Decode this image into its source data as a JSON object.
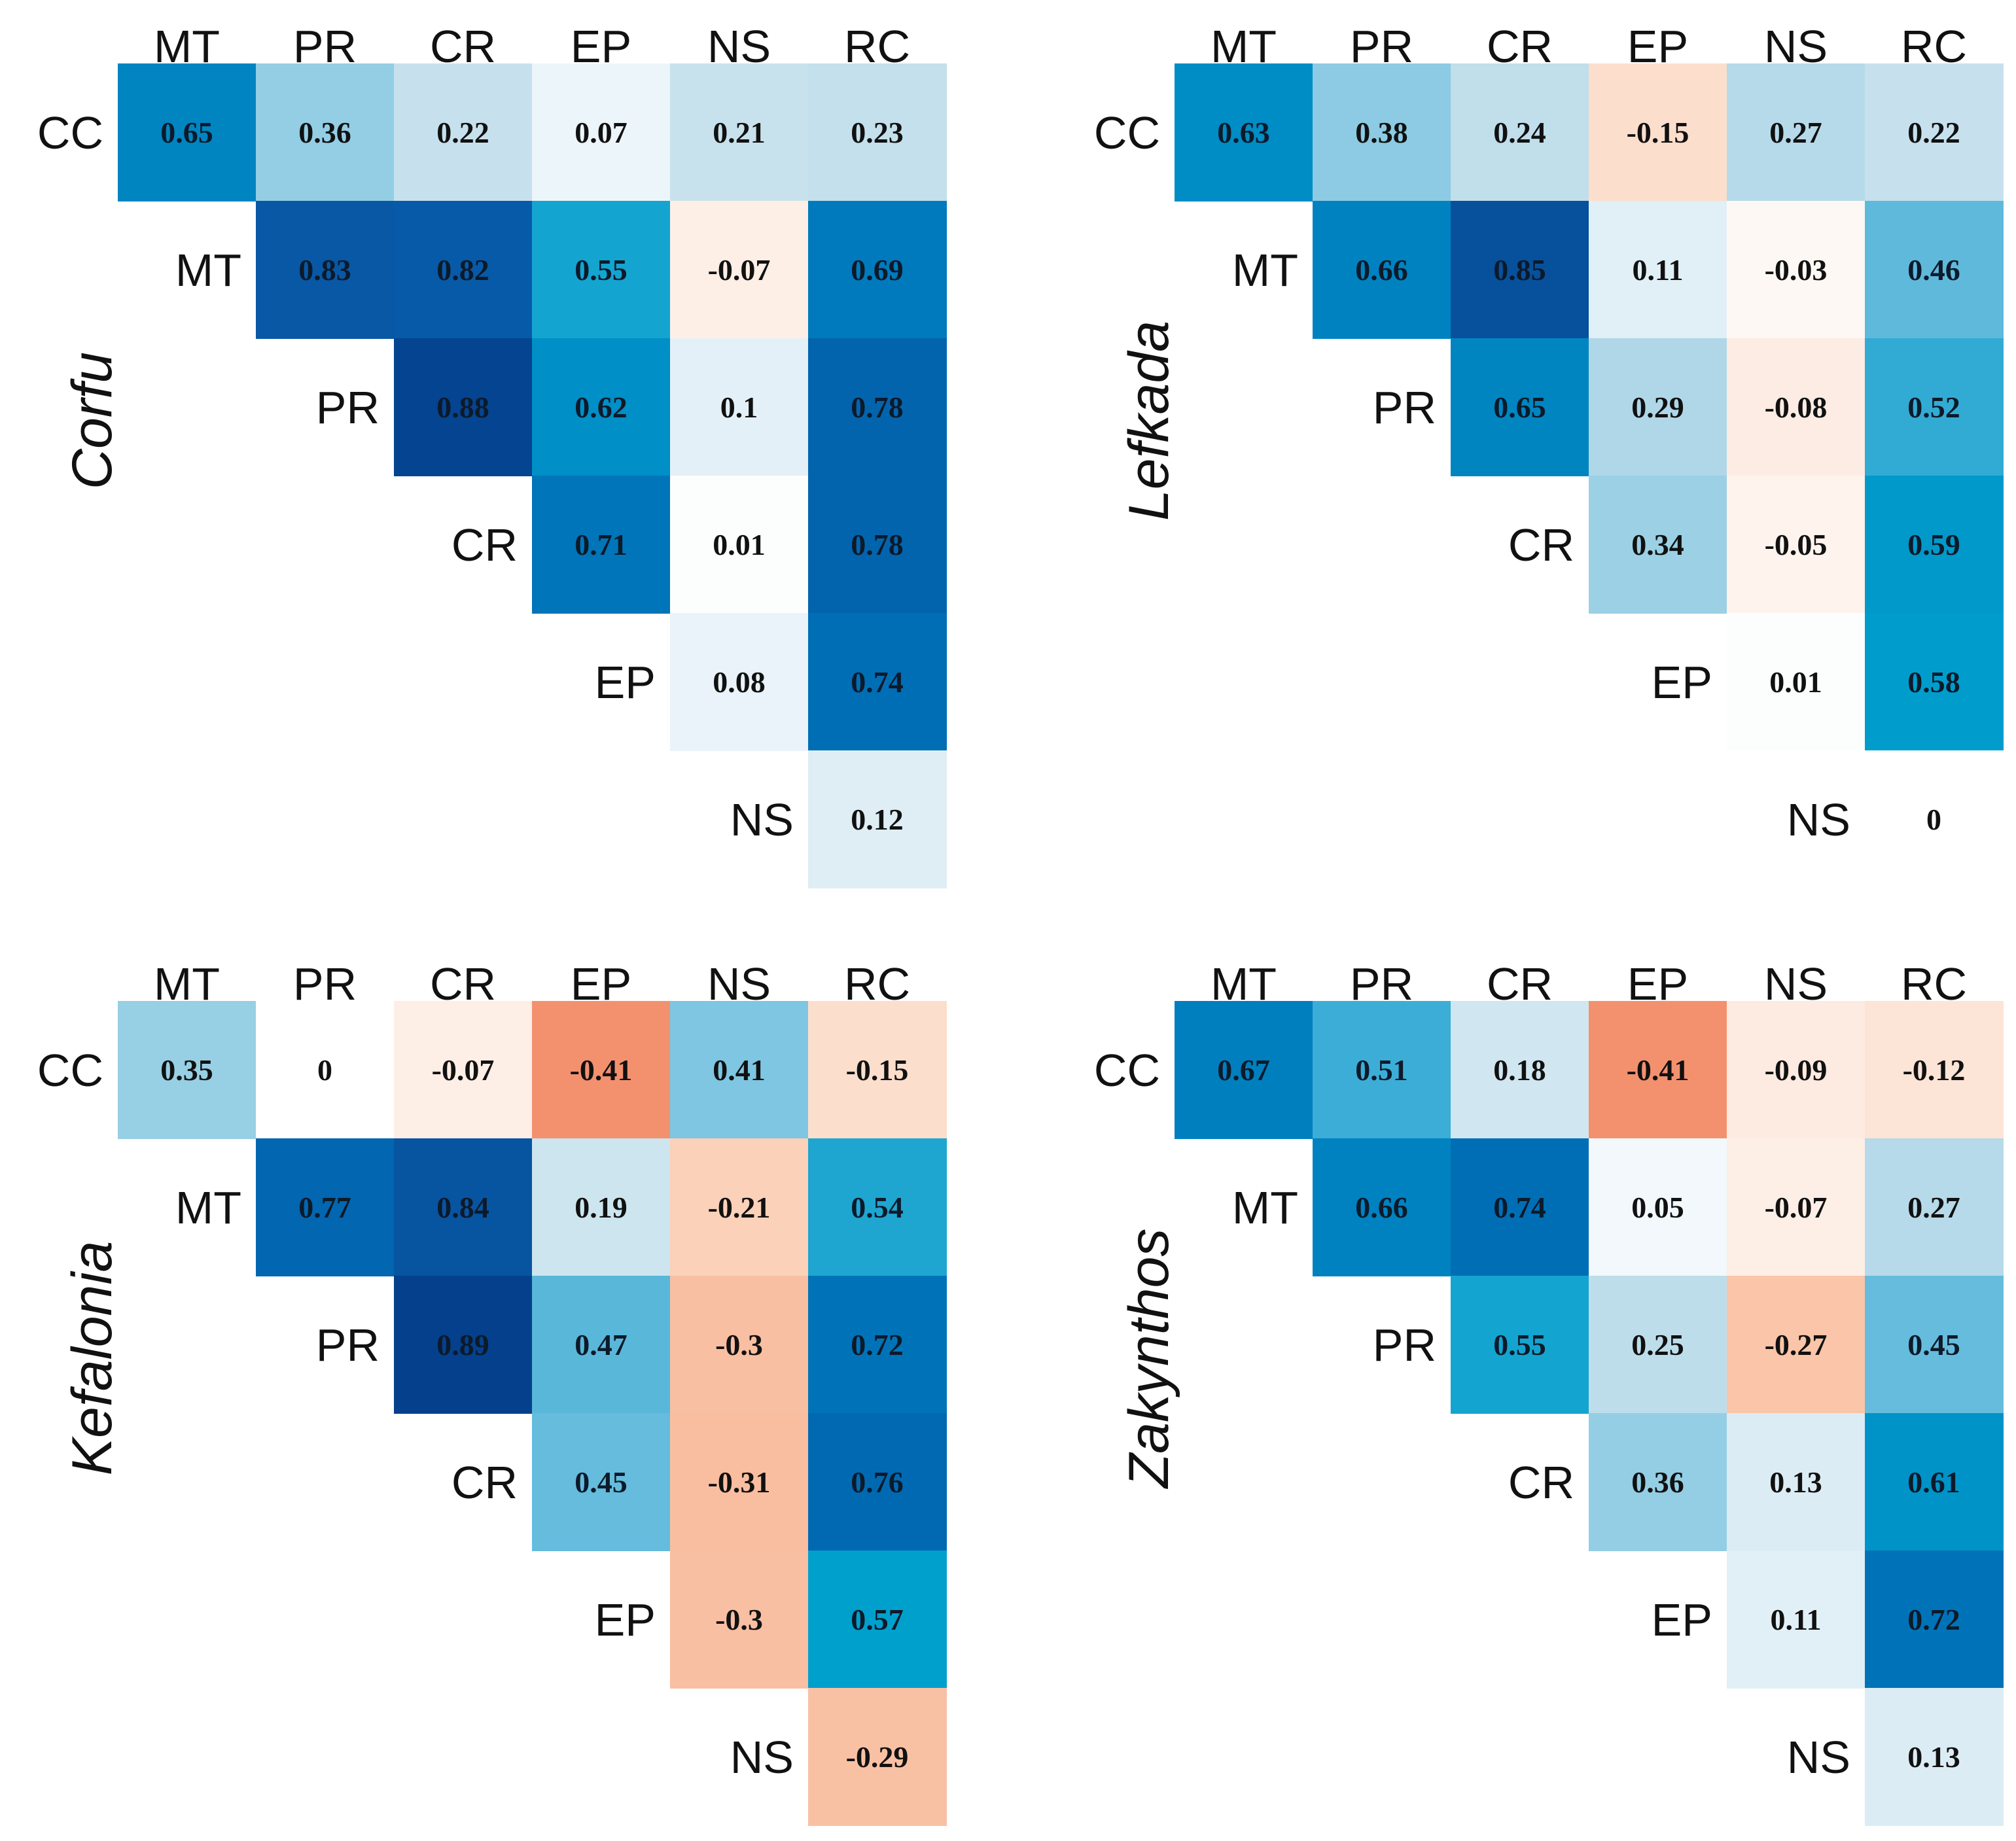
{
  "chart_data": [
    {
      "type": "heatmap",
      "title": "Corfu",
      "row_labels": [
        "CC",
        "MT",
        "PR",
        "CR",
        "EP",
        "NS"
      ],
      "col_labels": [
        "MT",
        "PR",
        "CR",
        "EP",
        "NS",
        "RC"
      ],
      "values": [
        [
          0.65,
          0.36,
          0.22,
          0.07,
          0.21,
          0.23
        ],
        [
          0.83,
          0.82,
          0.55,
          -0.07,
          0.69
        ],
        [
          0.88,
          0.62,
          0.1,
          0.78
        ],
        [
          0.71,
          0.01,
          0.78
        ],
        [
          0.08,
          0.74
        ],
        [
          0.12
        ]
      ],
      "value_labels": [
        [
          "0.65",
          "0.36",
          "0.22",
          "0.07",
          "0.21",
          "0.23"
        ],
        [
          "0.83",
          "0.82",
          "0.55",
          "-0.07",
          "0.69"
        ],
        [
          "0.88",
          "0.62",
          "0.1",
          "0.78"
        ],
        [
          "0.71",
          "0.01",
          "0.78"
        ],
        [
          "0.08",
          "0.74"
        ],
        [
          "0.12"
        ]
      ]
    },
    {
      "type": "heatmap",
      "title": "Lefkada",
      "row_labels": [
        "CC",
        "MT",
        "PR",
        "CR",
        "EP",
        "NS"
      ],
      "col_labels": [
        "MT",
        "PR",
        "CR",
        "EP",
        "NS",
        "RC"
      ],
      "values": [
        [
          0.63,
          0.38,
          0.24,
          -0.15,
          0.27,
          0.22
        ],
        [
          0.66,
          0.85,
          0.11,
          -0.03,
          0.46
        ],
        [
          0.65,
          0.29,
          -0.08,
          0.52
        ],
        [
          0.34,
          -0.05,
          0.59
        ],
        [
          0.01,
          0.58
        ],
        [
          0
        ]
      ],
      "value_labels": [
        [
          "0.63",
          "0.38",
          "0.24",
          "-0.15",
          "0.27",
          "0.22"
        ],
        [
          "0.66",
          "0.85",
          "0.11",
          "-0.03",
          "0.46"
        ],
        [
          "0.65",
          "0.29",
          "-0.08",
          "0.52"
        ],
        [
          "0.34",
          "-0.05",
          "0.59"
        ],
        [
          "0.01",
          "0.58"
        ],
        [
          "0"
        ]
      ]
    },
    {
      "type": "heatmap",
      "title": "Kefalonia",
      "row_labels": [
        "CC",
        "MT",
        "PR",
        "CR",
        "EP",
        "NS"
      ],
      "col_labels": [
        "MT",
        "PR",
        "CR",
        "EP",
        "NS",
        "RC"
      ],
      "values": [
        [
          0.35,
          0,
          -0.07,
          -0.41,
          0.41,
          -0.15
        ],
        [
          0.77,
          0.84,
          0.19,
          -0.21,
          0.54
        ],
        [
          0.89,
          0.47,
          -0.3,
          0.72
        ],
        [
          0.45,
          -0.31,
          0.76
        ],
        [
          -0.3,
          0.57
        ],
        [
          -0.29
        ]
      ],
      "value_labels": [
        [
          "0.35",
          "0",
          "-0.07",
          "-0.41",
          "0.41",
          "-0.15"
        ],
        [
          "0.77",
          "0.84",
          "0.19",
          "-0.21",
          "0.54"
        ],
        [
          "0.89",
          "0.47",
          "-0.3",
          "0.72"
        ],
        [
          "0.45",
          "-0.31",
          "0.76"
        ],
        [
          "-0.3",
          "0.57"
        ],
        [
          "-0.29"
        ]
      ]
    },
    {
      "type": "heatmap",
      "title": "Zakynthos",
      "row_labels": [
        "CC",
        "MT",
        "PR",
        "CR",
        "EP",
        "NS"
      ],
      "col_labels": [
        "MT",
        "PR",
        "CR",
        "EP",
        "NS",
        "RC"
      ],
      "values": [
        [
          0.67,
          0.51,
          0.18,
          -0.41,
          -0.09,
          -0.12
        ],
        [
          0.66,
          0.74,
          0.05,
          -0.07,
          0.27
        ],
        [
          0.55,
          0.25,
          -0.27,
          0.45
        ],
        [
          0.36,
          0.13,
          0.61
        ],
        [
          0.11,
          0.72
        ],
        [
          0.13
        ]
      ],
      "value_labels": [
        [
          "0.67",
          "0.51",
          "0.18",
          "-0.41",
          "-0.09",
          "-0.12"
        ],
        [
          "0.66",
          "0.74",
          "0.05",
          "-0.07",
          "0.27"
        ],
        [
          "0.55",
          "0.25",
          "-0.27",
          "0.45"
        ],
        [
          "0.36",
          "0.13",
          "0.61"
        ],
        [
          "0.11",
          "0.72"
        ],
        [
          "0.13"
        ]
      ]
    }
  ]
}
